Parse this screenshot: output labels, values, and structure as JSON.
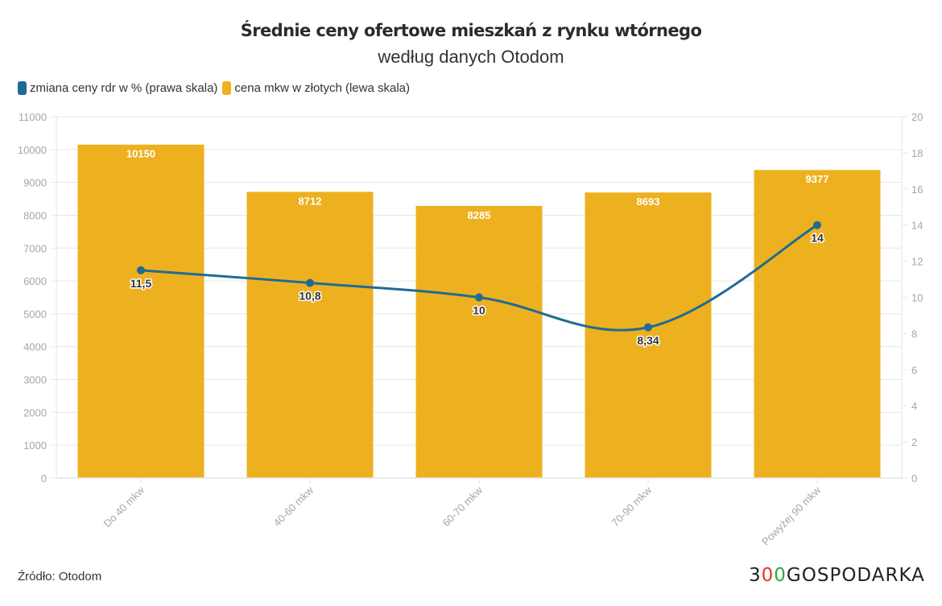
{
  "header": {
    "title": "Średnie ceny ofertowe mieszkań z rynku wtórnego",
    "subtitle": "według danych Otodom"
  },
  "legend": [
    {
      "label": "zmiana ceny rdr w % (prawa skala)",
      "color": "#1f6b94"
    },
    {
      "label": "cena mkw w złotych (lewa skala)",
      "color": "#edb120"
    }
  ],
  "footer": {
    "source": "Źródło: Otodom",
    "logo": {
      "part1": "3",
      "part2": "0",
      "part3": "0",
      "part4": "GOSPODARKA"
    }
  },
  "chart_data": {
    "type": "bar",
    "title": "Średnie ceny ofertowe mieszkań z rynku wtórnego",
    "subtitle": "według danych Otodom",
    "categories": [
      "Do 40 mkw",
      "40-60 mkw",
      "60-70 mkw",
      "70-90 mkw",
      "Powyżej 90 mkw"
    ],
    "series": [
      {
        "name": "cena mkw w złotych (lewa skala)",
        "type": "bar",
        "axis": "left",
        "color": "#edb120",
        "values": [
          10150,
          8712,
          8285,
          8693,
          9377
        ],
        "labels": [
          "10150",
          "8712",
          "8285",
          "8693",
          "9377"
        ]
      },
      {
        "name": "zmiana ceny rdr w % (prawa skala)",
        "type": "line",
        "axis": "right",
        "color": "#1f6b94",
        "values": [
          11.5,
          10.8,
          10,
          8.34,
          14
        ],
        "labels": [
          "11,5",
          "10,8",
          "10",
          "8,34",
          "14"
        ]
      }
    ],
    "y_left": {
      "min": 0,
      "max": 11000,
      "ticks": [
        0,
        1000,
        2000,
        3000,
        4000,
        5000,
        6000,
        7000,
        8000,
        9000,
        10000,
        11000
      ]
    },
    "y_right": {
      "min": 0,
      "max": 20,
      "ticks": [
        0,
        2,
        4,
        6,
        8,
        10,
        12,
        14,
        16,
        18,
        20
      ]
    },
    "xlabel": "",
    "ylabel": "",
    "grid": true,
    "legend_position": "top-left"
  }
}
